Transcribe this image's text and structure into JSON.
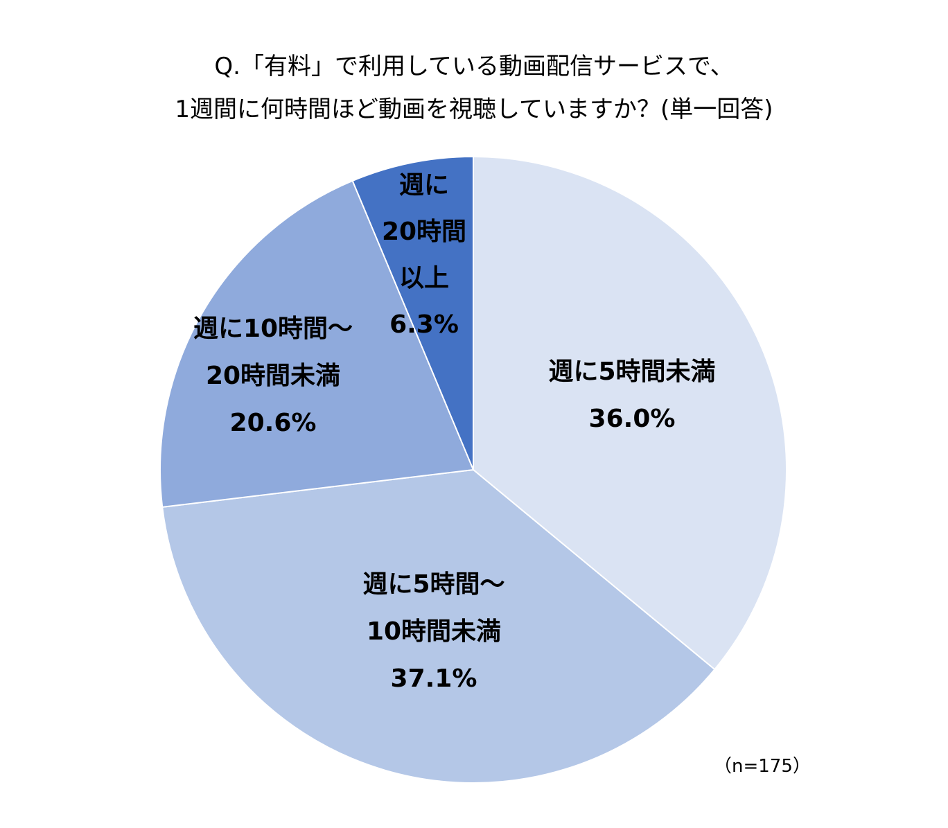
{
  "chart_data": {
    "type": "pie",
    "title_lines": [
      "Q.「有料」で利用している動画配信サービスで、",
      "1週間に何時間ほど動画を視聴していますか？(単一回答)"
    ],
    "note": "（n=175）",
    "slices": [
      {
        "label_lines": [
          "週に5時間未満"
        ],
        "value": 36.0,
        "value_label": "36.0%",
        "color": "#DAE3F3"
      },
      {
        "label_lines": [
          "週に5時間～",
          "10時間未満"
        ],
        "value": 37.1,
        "value_label": "37.1%",
        "color": "#B4C7E7"
      },
      {
        "label_lines": [
          "週に10時間～",
          "20時間未満"
        ],
        "value": 20.6,
        "value_label": "20.6%",
        "color": "#8FAADC"
      },
      {
        "label_lines": [
          "週に",
          "20時間",
          "以上"
        ],
        "value": 6.3,
        "value_label": "6.3%",
        "color": "#4472C4"
      }
    ],
    "start_angle": "12 o'clock",
    "direction": "clockwise",
    "legend": "none"
  }
}
